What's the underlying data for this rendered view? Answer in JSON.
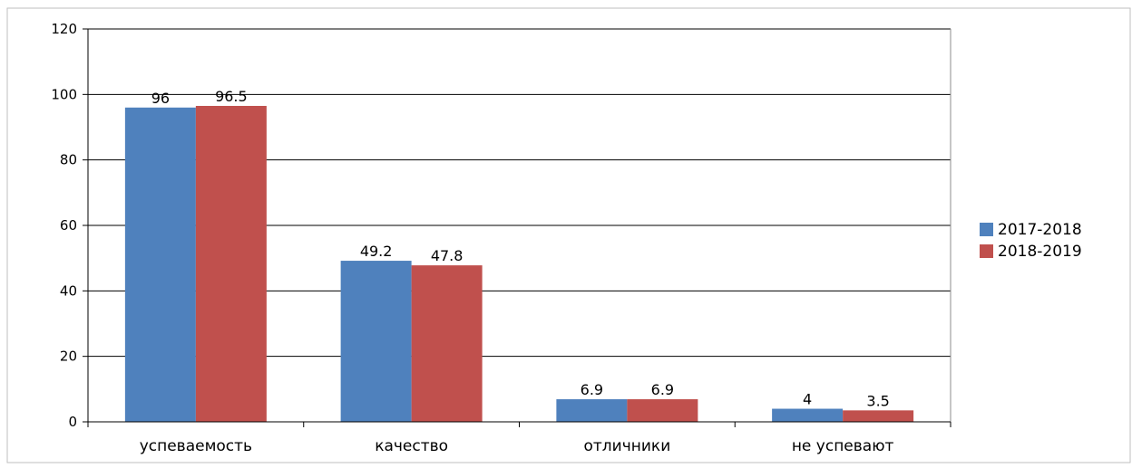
{
  "chart_data": {
    "type": "bar",
    "categories": [
      "успеваемость",
      "качество",
      "отличники",
      "не успевают"
    ],
    "series": [
      {
        "name": "2017-2018",
        "values": [
          96,
          49.2,
          6.9,
          4
        ],
        "labels": [
          "96",
          "49.2",
          "6.9",
          "4"
        ],
        "color": "#4f81bd"
      },
      {
        "name": "2018-2019",
        "values": [
          96.5,
          47.8,
          6.9,
          3.5
        ],
        "labels": [
          "96.5",
          "47.8",
          "6.9",
          "3.5"
        ],
        "color": "#c0504d"
      }
    ],
    "ylim": [
      0,
      120
    ],
    "yticks": [
      "0",
      "20",
      "40",
      "60",
      "80",
      "100",
      "120"
    ],
    "grid": true,
    "legend_position": "right",
    "title": "",
    "xlabel": "",
    "ylabel": ""
  }
}
